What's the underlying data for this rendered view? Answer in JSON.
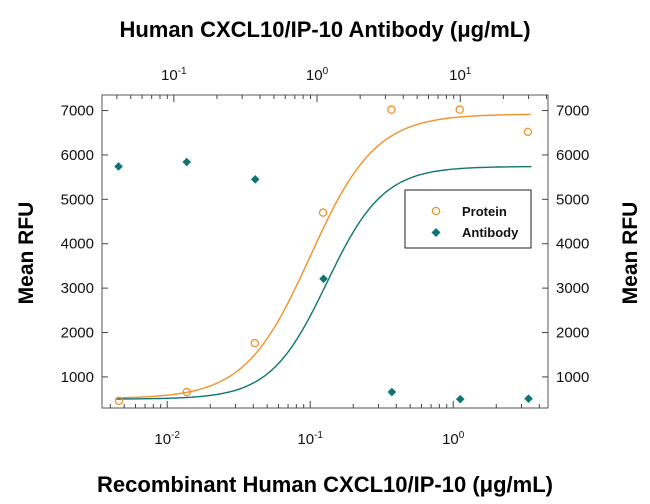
{
  "chart_data": {
    "type": "scatter",
    "title": "Human CXCL10/IP-10 Antibody (μg/mL)",
    "xlabel": "Recombinant Human CXCL10/IP-10 (μg/mL)",
    "ylabel": "Mean RFU",
    "ylabel_right": "Mean RFU",
    "x_scale": "log",
    "xlim": [
      0.0035,
      4.6
    ],
    "x_ticks": [
      0.01,
      0.1,
      1
    ],
    "x_tick_labels": [
      {
        "base": "10",
        "exp": "-2"
      },
      {
        "base": "10",
        "exp": "-1"
      },
      {
        "base": "10",
        "exp": "0"
      }
    ],
    "x_top_scale": "log",
    "x_top_lim": [
      0.0315,
      41
    ],
    "x_top_ticks": [
      0.1,
      1,
      10
    ],
    "x_top_tick_labels": [
      {
        "base": "10",
        "exp": "-1"
      },
      {
        "base": "10",
        "exp": "0"
      },
      {
        "base": "10",
        "exp": "1"
      }
    ],
    "ylim": [
      300,
      7350
    ],
    "y_ticks": [
      1000,
      2000,
      3000,
      4000,
      5000,
      6000,
      7000
    ],
    "grid": false,
    "legend_position": "right",
    "series": [
      {
        "name": "Protein",
        "marker": "open-circle",
        "color": "#f0922b",
        "axis": "bottom",
        "x": [
          0.0046,
          0.0137,
          0.041,
          0.123,
          0.37,
          1.11,
          3.33
        ],
        "y": [
          460,
          660,
          1760,
          4700,
          7020,
          7020,
          6520
        ],
        "fit": {
          "model": "4PL",
          "bottom": 510,
          "top": 6920,
          "ec50": 0.1,
          "hill": 1.9
        }
      },
      {
        "name": "Antibody",
        "marker": "filled-diamond",
        "color": "#0f7571",
        "axis": "top",
        "x": [
          0.0411,
          0.123,
          0.37,
          1.11,
          3.33,
          10.0,
          30.0
        ],
        "y": [
          5740,
          5840,
          5450,
          3210,
          660,
          500,
          510
        ],
        "fit": {
          "model": "4PL",
          "bottom": 500,
          "top": 5740,
          "ec50": 1.17,
          "hill": 2.2
        }
      }
    ]
  }
}
